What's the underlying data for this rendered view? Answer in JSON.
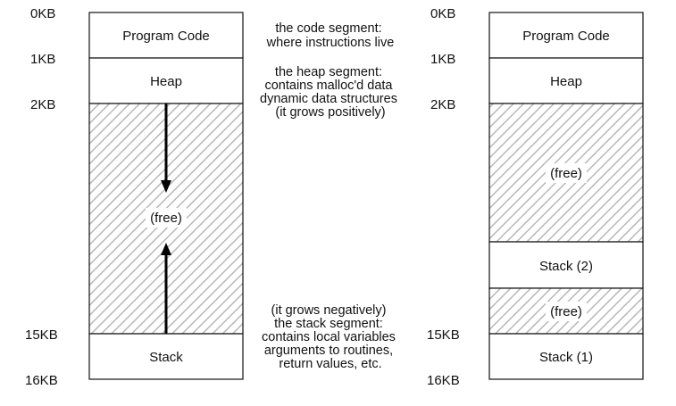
{
  "left_diagram": {
    "address_labels": [
      "0KB",
      "1KB",
      "2KB",
      "15KB",
      "16KB"
    ],
    "segments": {
      "code": "Program Code",
      "heap": "Heap",
      "free": "(free)",
      "stack": "Stack"
    }
  },
  "annotations": {
    "code": [
      "the code segment:",
      "where instructions live"
    ],
    "heap": [
      "the heap segment:",
      "contains malloc'd data",
      "dynamic data structures",
      "(it grows positively)"
    ],
    "stack": [
      "(it grows negatively)",
      "the stack segment:",
      "contains local variables",
      "arguments to routines,",
      "return values, etc."
    ]
  },
  "right_diagram": {
    "address_labels": [
      "0KB",
      "1KB",
      "2KB",
      "15KB",
      "16KB"
    ],
    "segments": {
      "code": "Program Code",
      "heap": "Heap",
      "free_1": "(free)",
      "stack_2": "Stack (2)",
      "free_2": "(free)",
      "stack_1": "Stack (1)"
    }
  }
}
